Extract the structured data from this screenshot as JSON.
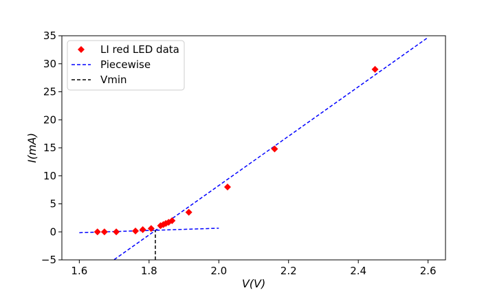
{
  "chart_data": {
    "type": "scatter",
    "xlabel": "V(V)",
    "ylabel": "I(mA)",
    "xlim": [
      1.55,
      2.65
    ],
    "ylim": [
      -5,
      35
    ],
    "xticks": [
      "1.6",
      "1.8",
      "2.0",
      "2.2",
      "2.4",
      "2.6"
    ],
    "yticks": [
      "−5",
      "0",
      "5",
      "10",
      "15",
      "20",
      "25",
      "30",
      "35"
    ],
    "grid": false,
    "legend_position": "top-left",
    "series": [
      {
        "name": "LI red LED data",
        "kind": "scatter",
        "marker": "diamond",
        "color": "#ff0000",
        "x": [
          1.652,
          1.672,
          1.706,
          1.761,
          1.782,
          1.806,
          1.833,
          1.841,
          1.848,
          1.856,
          1.866,
          1.914,
          2.025,
          2.16,
          2.448
        ],
        "y": [
          0.0,
          0.0,
          0.0,
          0.15,
          0.4,
          0.6,
          1.1,
          1.3,
          1.5,
          1.7,
          2.0,
          3.5,
          8.0,
          14.8,
          29.0
        ]
      },
      {
        "name": "Piecewise",
        "kind": "dashed-line",
        "color": "#0000ff",
        "segments": [
          {
            "x": [
              1.6,
              2.0
            ],
            "y": [
              -0.15,
              0.65
            ]
          },
          {
            "x": [
              1.7,
              2.6
            ],
            "y": [
              -4.95,
              34.7
            ]
          }
        ]
      },
      {
        "name": "Vmin",
        "kind": "dashed-vline",
        "color": "#000000",
        "x": 1.818,
        "y": [
          -5,
          0.3
        ]
      }
    ]
  }
}
